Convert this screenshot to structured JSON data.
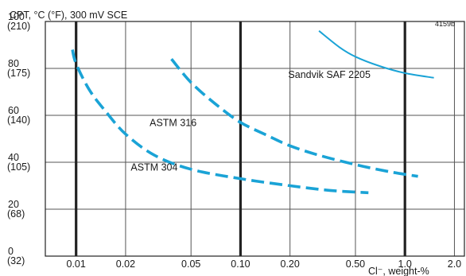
{
  "chart_data": {
    "type": "line",
    "title": "CPT, °C (°F), 300 mV SCE",
    "xlabel": "Cl⁻, weight-%",
    "x_scale": "log",
    "xlim": [
      0.0065,
      2.3
    ],
    "ylim": [
      0,
      100
    ],
    "figure_id": "4159b",
    "grid": true,
    "x_ticks": [
      {
        "value": 0.01,
        "label": "0.01",
        "bold": true
      },
      {
        "value": 0.02,
        "label": "0.02",
        "bold": false
      },
      {
        "value": 0.05,
        "label": "0.05",
        "bold": false
      },
      {
        "value": 0.1,
        "label": "0.10",
        "bold": true
      },
      {
        "value": 0.2,
        "label": "0.20",
        "bold": false
      },
      {
        "value": 0.5,
        "label": "0.50",
        "bold": false
      },
      {
        "value": 1.0,
        "label": "1.0",
        "bold": true
      },
      {
        "value": 2.0,
        "label": "2.0",
        "bold": false
      }
    ],
    "y_ticks": [
      {
        "value": 0,
        "label_c": "0",
        "label_f": "(32)"
      },
      {
        "value": 20,
        "label_c": "20",
        "label_f": "(68)"
      },
      {
        "value": 40,
        "label_c": "40",
        "label_f": "(105)"
      },
      {
        "value": 60,
        "label_c": "60",
        "label_f": "(140)"
      },
      {
        "value": 80,
        "label_c": "80",
        "label_f": "(175)"
      },
      {
        "value": 100,
        "label_c": "100",
        "label_f": "(210)"
      }
    ],
    "series": [
      {
        "name": "ASTM 304",
        "style": "dashed",
        "x": [
          0.0095,
          0.01,
          0.012,
          0.015,
          0.02,
          0.03,
          0.05,
          0.1,
          0.2,
          0.35,
          0.6
        ],
        "y": [
          88,
          82,
          71,
          62,
          52,
          43,
          37,
          33,
          30,
          28,
          27
        ]
      },
      {
        "name": "ASTM 316",
        "style": "dashed",
        "x": [
          0.038,
          0.05,
          0.07,
          0.1,
          0.15,
          0.2,
          0.3,
          0.5,
          0.8,
          1.2
        ],
        "y": [
          84,
          74,
          65,
          57,
          51,
          47,
          43,
          39,
          36,
          34
        ]
      },
      {
        "name": "Sandvik SAF 2205",
        "style": "solid",
        "x": [
          0.3,
          0.4,
          0.5,
          0.7,
          1.0,
          1.5
        ],
        "y": [
          96,
          89,
          85,
          81,
          78,
          76
        ]
      }
    ],
    "annotations": [
      {
        "text": "ASTM 304",
        "x": 0.0215,
        "y": 36.5
      },
      {
        "text": "ASTM 316",
        "x": 0.028,
        "y": 55.5
      },
      {
        "text": "Sandvik SAF 2205",
        "x": 0.195,
        "y": 76
      }
    ],
    "colors": {
      "line": "#1aa3d6",
      "grid": "#555555",
      "grid_bold": "#222222"
    }
  }
}
